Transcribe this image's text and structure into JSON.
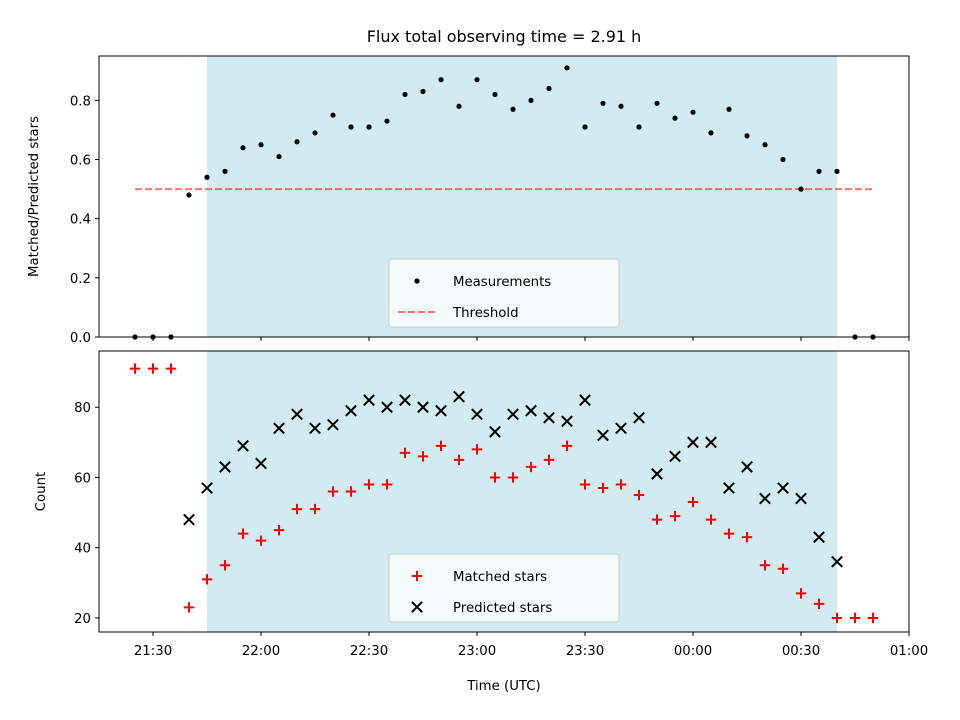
{
  "chart_data": {
    "type": "scatter",
    "title": "Flux total observing time = 2.91 h",
    "xlabel": "Time (UTC)",
    "x_unit": "time of night (HH:MM UTC), rolling past midnight",
    "x_range": [
      "21:15",
      "01:00"
    ],
    "x_ticks": [
      "21:30",
      "22:00",
      "22:30",
      "23:00",
      "23:30",
      "00:00",
      "00:30",
      "01:00"
    ],
    "shaded_interval": [
      "21:45",
      "00:40"
    ],
    "colors": {
      "shade": "#add8e6",
      "measurements": "#000000",
      "threshold": "#ff0000",
      "matched": "#ff0000",
      "predicted": "#000000"
    },
    "panels": [
      {
        "ylabel": "Matched/Predicted stars",
        "ylim": [
          0,
          0.95
        ],
        "yticks": [
          "0.0",
          "0.2",
          "0.4",
          "0.6",
          "0.8"
        ],
        "legend_position": "lower center",
        "legend": [
          {
            "label": "Measurements",
            "marker": "dot"
          },
          {
            "label": "Threshold",
            "marker": "dashed-line"
          }
        ],
        "threshold": {
          "value": 0.5,
          "x": [
            "21:25",
            "00:50"
          ]
        },
        "series": [
          {
            "name": "Measurements",
            "x": [
              "21:25",
              "21:30",
              "21:35",
              "21:40",
              "21:45",
              "21:50",
              "21:55",
              "22:00",
              "22:05",
              "22:10",
              "22:15",
              "22:20",
              "22:25",
              "22:30",
              "22:35",
              "22:40",
              "22:45",
              "22:50",
              "22:55",
              "23:00",
              "23:05",
              "23:10",
              "23:15",
              "23:20",
              "23:25",
              "23:30",
              "23:35",
              "23:40",
              "23:45",
              "23:50",
              "23:55",
              "00:00",
              "00:05",
              "00:10",
              "00:15",
              "00:20",
              "00:25",
              "00:30",
              "00:35",
              "00:40",
              "00:45",
              "00:50"
            ],
            "y": [
              0.0,
              0.0,
              0.0,
              0.48,
              0.54,
              0.56,
              0.64,
              0.65,
              0.61,
              0.66,
              0.69,
              0.75,
              0.71,
              0.71,
              0.73,
              0.82,
              0.83,
              0.87,
              0.78,
              0.87,
              0.82,
              0.77,
              0.8,
              0.84,
              0.91,
              0.71,
              0.79,
              0.78,
              0.71,
              0.79,
              0.74,
              0.76,
              0.69,
              0.77,
              0.68,
              0.65,
              0.6,
              0.5,
              0.56,
              0.56,
              0.0,
              0.0
            ]
          }
        ]
      },
      {
        "ylabel": "Count",
        "ylim": [
          16,
          96
        ],
        "yticks": [
          "20",
          "40",
          "60",
          "80"
        ],
        "legend_position": "lower center",
        "legend": [
          {
            "label": "Matched stars",
            "marker": "plus"
          },
          {
            "label": "Predicted stars",
            "marker": "x"
          }
        ],
        "series": [
          {
            "name": "Matched stars",
            "x": [
              "21:25",
              "21:30",
              "21:35",
              "21:40",
              "21:45",
              "21:50",
              "21:55",
              "22:00",
              "22:05",
              "22:10",
              "22:15",
              "22:20",
              "22:25",
              "22:30",
              "22:35",
              "22:40",
              "22:45",
              "22:50",
              "22:55",
              "23:00",
              "23:05",
              "23:10",
              "23:15",
              "23:20",
              "23:25",
              "23:30",
              "23:35",
              "23:40",
              "23:45",
              "23:50",
              "23:55",
              "00:00",
              "00:05",
              "00:10",
              "00:15",
              "00:20",
              "00:25",
              "00:30",
              "00:35",
              "00:40",
              "00:45",
              "00:50"
            ],
            "y": [
              91,
              91,
              91,
              23,
              31,
              35,
              44,
              42,
              45,
              51,
              51,
              56,
              56,
              58,
              58,
              67,
              66,
              69,
              65,
              68,
              60,
              60,
              63,
              65,
              69,
              58,
              57,
              58,
              55,
              48,
              49,
              53,
              48,
              44,
              43,
              35,
              34,
              27,
              24,
              20,
              20,
              20
            ]
          },
          {
            "name": "Predicted stars",
            "x": [
              "21:40",
              "21:45",
              "21:50",
              "21:55",
              "22:00",
              "22:05",
              "22:10",
              "22:15",
              "22:20",
              "22:25",
              "22:30",
              "22:35",
              "22:40",
              "22:45",
              "22:50",
              "22:55",
              "23:00",
              "23:05",
              "23:10",
              "23:15",
              "23:20",
              "23:25",
              "23:30",
              "23:35",
              "23:40",
              "23:45",
              "23:50",
              "23:55",
              "00:00",
              "00:05",
              "00:10",
              "00:15",
              "00:20",
              "00:25",
              "00:30",
              "00:35",
              "00:40"
            ],
            "y": [
              48,
              57,
              63,
              69,
              64,
              74,
              78,
              74,
              75,
              79,
              82,
              80,
              82,
              80,
              79,
              83,
              78,
              73,
              78,
              79,
              77,
              76,
              82,
              72,
              74,
              77,
              61,
              66,
              70,
              70,
              57,
              63,
              54,
              57,
              54,
              43,
              36
            ]
          }
        ]
      }
    ]
  }
}
